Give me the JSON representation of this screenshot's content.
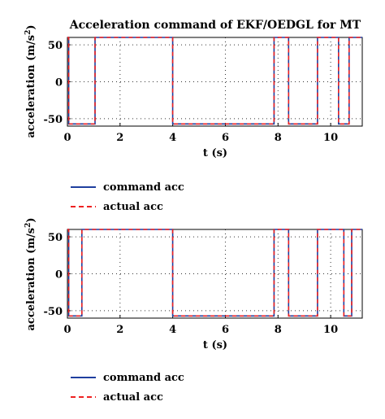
{
  "chart_data": [
    {
      "type": "line",
      "title": "Acceleration command of EKF/OEDGL for MT",
      "xlabel": "t (s)",
      "ylabel": "acceleration (m/s",
      "ylabel_sup": "2",
      "ylabel_close": ")",
      "xlim": [
        0,
        11.2
      ],
      "ylim": [
        -60,
        60
      ],
      "xticks": [
        0,
        2,
        4,
        6,
        8,
        10
      ],
      "yticks": [
        -50,
        0,
        50
      ],
      "grid": true,
      "legend_position": "below",
      "series": [
        {
          "name": "command acc",
          "style": "solid",
          "color": "#1f3f9f",
          "x": [
            0,
            0.05,
            0.05,
            1.05,
            1.05,
            4.0,
            4.0,
            7.85,
            7.85,
            8.4,
            8.4,
            9.5,
            9.5,
            10.3,
            10.3,
            10.7,
            10.7,
            11.2
          ],
          "y": [
            60,
            60,
            -57,
            -57,
            60,
            60,
            -57,
            -57,
            60,
            60,
            -57,
            -57,
            60,
            60,
            -57,
            -57,
            60,
            60
          ]
        },
        {
          "name": "actual acc",
          "style": "dashed",
          "color": "#ee2222",
          "x": [
            0,
            0.05,
            0.05,
            1.05,
            1.05,
            4.0,
            4.0,
            7.85,
            7.85,
            8.4,
            8.4,
            9.5,
            9.5,
            10.3,
            10.3,
            10.7,
            10.7,
            11.2
          ],
          "y": [
            60,
            60,
            -57,
            -57,
            60,
            60,
            -57,
            -57,
            60,
            60,
            -57,
            -57,
            60,
            60,
            -57,
            -57,
            60,
            60
          ]
        }
      ]
    },
    {
      "type": "line",
      "title": "",
      "xlabel": "t (s)",
      "ylabel": "acceleration (m/s",
      "ylabel_sup": "2",
      "ylabel_close": ")",
      "xlim": [
        0,
        11.2
      ],
      "ylim": [
        -60,
        60
      ],
      "xticks": [
        0,
        2,
        4,
        6,
        8,
        10
      ],
      "yticks": [
        -50,
        0,
        50
      ],
      "grid": true,
      "legend_position": "below",
      "series": [
        {
          "name": "command acc",
          "style": "solid",
          "color": "#1f3f9f",
          "x": [
            0,
            0.05,
            0.05,
            0.55,
            0.55,
            4.0,
            4.0,
            7.85,
            7.85,
            8.4,
            8.4,
            9.5,
            9.5,
            10.5,
            10.5,
            10.8,
            10.8,
            11.2
          ],
          "y": [
            60,
            60,
            -57,
            -57,
            60,
            60,
            -57,
            -57,
            60,
            60,
            -57,
            -57,
            60,
            60,
            -57,
            -57,
            60,
            60
          ]
        },
        {
          "name": "actual acc",
          "style": "dashed",
          "color": "#ee2222",
          "x": [
            0,
            0.05,
            0.05,
            0.55,
            0.55,
            4.0,
            4.0,
            7.85,
            7.85,
            8.4,
            8.4,
            9.5,
            9.5,
            10.5,
            10.5,
            10.8,
            10.8,
            11.2
          ],
          "y": [
            60,
            60,
            -57,
            -57,
            60,
            60,
            -57,
            -57,
            60,
            60,
            -57,
            -57,
            60,
            60,
            -57,
            -57,
            60,
            60
          ]
        }
      ]
    }
  ]
}
